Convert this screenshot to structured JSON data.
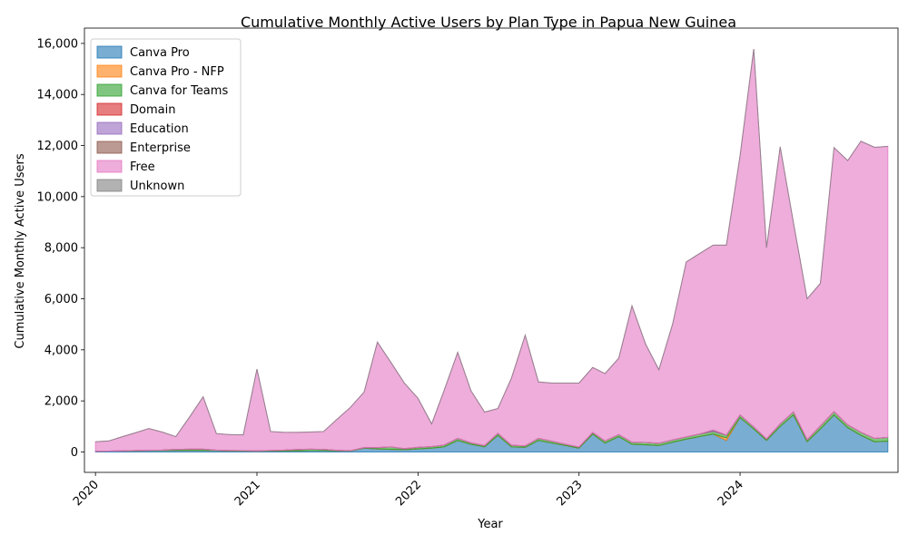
{
  "chart_data": {
    "type": "area",
    "stacked": true,
    "title": "Cumulative Monthly Active Users by Plan Type in Papua New Guinea",
    "xlabel": "Year",
    "ylabel": "Cumulative Monthly Active Users",
    "ylim": [
      -800,
      16600
    ],
    "yticks": [
      0,
      2000,
      4000,
      6000,
      8000,
      10000,
      12000,
      14000,
      16000
    ],
    "ytick_labels": [
      "0",
      "2,000",
      "4,000",
      "6,000",
      "8,000",
      "10,000",
      "12,000",
      "14,000",
      "16,000"
    ],
    "xlim": [
      "2019-12-07",
      "2024-12-24"
    ],
    "xticks": [
      "2020-01-01",
      "2021-01-01",
      "2022-01-01",
      "2023-01-01",
      "2024-01-01"
    ],
    "xtick_labels": [
      "2020",
      "2021",
      "2022",
      "2023",
      "2024"
    ],
    "grid": false,
    "legend_position": "upper-left",
    "x": [
      "2020-01-01",
      "2020-02-01",
      "2020-03-01",
      "2020-04-01",
      "2020-05-01",
      "2020-06-01",
      "2020-07-01",
      "2020-08-01",
      "2020-09-01",
      "2020-10-01",
      "2020-11-01",
      "2020-12-01",
      "2021-01-01",
      "2021-02-01",
      "2021-03-01",
      "2021-04-01",
      "2021-05-01",
      "2021-06-01",
      "2021-07-01",
      "2021-08-01",
      "2021-09-01",
      "2021-10-01",
      "2021-11-01",
      "2021-12-01",
      "2022-01-01",
      "2022-02-01",
      "2022-03-01",
      "2022-04-01",
      "2022-05-01",
      "2022-06-01",
      "2022-07-01",
      "2022-08-01",
      "2022-09-01",
      "2022-10-01",
      "2022-11-01",
      "2022-12-01",
      "2023-01-01",
      "2023-02-01",
      "2023-03-01",
      "2023-04-01",
      "2023-05-01",
      "2023-06-01",
      "2023-07-01",
      "2023-08-01",
      "2023-09-01",
      "2023-10-01",
      "2023-11-01",
      "2023-12-01",
      "2024-01-01",
      "2024-02-01",
      "2024-03-01",
      "2024-04-01",
      "2024-05-01",
      "2024-06-01",
      "2024-07-01",
      "2024-08-01",
      "2024-09-01",
      "2024-10-01",
      "2024-11-01",
      "2024-12-01"
    ],
    "series": [
      {
        "name": "Canva Pro",
        "color": "#1f77b4",
        "values": [
          30,
          35,
          40,
          45,
          50,
          55,
          60,
          65,
          60,
          50,
          40,
          35,
          30,
          35,
          40,
          45,
          50,
          50,
          45,
          40,
          150,
          120,
          100,
          90,
          120,
          150,
          200,
          450,
          300,
          200,
          650,
          200,
          180,
          450,
          350,
          250,
          150,
          700,
          350,
          600,
          300,
          280,
          250,
          380,
          500,
          600,
          700,
          450,
          1350,
          900,
          450,
          1000,
          1450,
          400,
          900,
          1450,
          950,
          650,
          400,
          420
        ]
      },
      {
        "name": "Canva Pro - NFP",
        "color": "#ff7f0e",
        "values": [
          0,
          0,
          0,
          0,
          0,
          0,
          0,
          0,
          0,
          0,
          0,
          0,
          0,
          0,
          0,
          0,
          0,
          0,
          0,
          0,
          0,
          0,
          0,
          0,
          0,
          0,
          0,
          0,
          0,
          0,
          0,
          0,
          0,
          0,
          0,
          0,
          0,
          0,
          0,
          0,
          0,
          0,
          0,
          0,
          0,
          0,
          0,
          100,
          0,
          0,
          0,
          0,
          0,
          0,
          0,
          0,
          0,
          0,
          0,
          0
        ]
      },
      {
        "name": "Canva for Teams",
        "color": "#2ca02c",
        "values": [
          0,
          0,
          5,
          10,
          15,
          20,
          40,
          45,
          50,
          20,
          15,
          15,
          15,
          20,
          30,
          50,
          60,
          50,
          20,
          10,
          20,
          50,
          100,
          40,
          60,
          60,
          70,
          80,
          60,
          50,
          80,
          60,
          60,
          80,
          70,
          50,
          40,
          60,
          80,
          80,
          80,
          90,
          90,
          90,
          90,
          100,
          110,
          110,
          100,
          80,
          60,
          100,
          120,
          80,
          120,
          130,
          110,
          120,
          130,
          150
        ]
      },
      {
        "name": "Domain",
        "color": "#d62728",
        "values": [
          0,
          0,
          0,
          0,
          0,
          0,
          0,
          0,
          0,
          0,
          0,
          0,
          0,
          0,
          0,
          0,
          0,
          0,
          0,
          0,
          0,
          0,
          0,
          0,
          0,
          0,
          0,
          0,
          0,
          0,
          0,
          0,
          0,
          0,
          0,
          0,
          0,
          0,
          0,
          0,
          0,
          0,
          0,
          0,
          0,
          0,
          0,
          0,
          0,
          0,
          0,
          0,
          0,
          0,
          0,
          0,
          0,
          0,
          0,
          0
        ]
      },
      {
        "name": "Education",
        "color": "#9467bd",
        "values": [
          0,
          0,
          0,
          0,
          0,
          0,
          0,
          0,
          0,
          0,
          0,
          0,
          0,
          0,
          0,
          0,
          0,
          0,
          0,
          0,
          0,
          0,
          0,
          0,
          0,
          0,
          0,
          0,
          0,
          0,
          0,
          0,
          0,
          0,
          0,
          0,
          0,
          0,
          0,
          0,
          0,
          0,
          0,
          0,
          0,
          0,
          50,
          0,
          0,
          0,
          0,
          0,
          0,
          0,
          0,
          0,
          0,
          0,
          0,
          0
        ]
      },
      {
        "name": "Enterprise",
        "color": "#8c564b",
        "values": [
          0,
          0,
          0,
          0,
          0,
          0,
          0,
          0,
          0,
          0,
          0,
          0,
          0,
          0,
          0,
          0,
          0,
          0,
          0,
          0,
          0,
          0,
          0,
          0,
          0,
          0,
          0,
          0,
          0,
          0,
          0,
          0,
          0,
          0,
          0,
          0,
          0,
          0,
          0,
          0,
          0,
          0,
          0,
          0,
          0,
          0,
          0,
          0,
          0,
          0,
          0,
          0,
          0,
          0,
          0,
          0,
          0,
          0,
          0,
          0
        ]
      },
      {
        "name": "Free",
        "color": "#e377c2",
        "values": [
          370,
          400,
          550,
          700,
          850,
          700,
          500,
          1250,
          2050,
          650,
          625,
          620,
          3200,
          745,
          700,
          670,
          670,
          700,
          1210,
          1700,
          2180,
          4130,
          3300,
          2570,
          1920,
          890,
          2130,
          3370,
          2040,
          1310,
          970,
          2640,
          4330,
          2210,
          2280,
          2400,
          2510,
          2550,
          2640,
          2990,
          5340,
          3850,
          2880,
          4530,
          6850,
          7070,
          7240,
          7440,
          10150,
          14800,
          7490,
          10850,
          7410,
          5520,
          5580,
          10340,
          10350,
          11400,
          11400,
          11400
        ]
      },
      {
        "name": "Unknown",
        "color": "#7f7f7f",
        "values": [
          0,
          0,
          0,
          0,
          0,
          0,
          0,
          0,
          0,
          0,
          0,
          0,
          0,
          0,
          0,
          0,
          0,
          0,
          0,
          0,
          0,
          0,
          0,
          0,
          0,
          0,
          0,
          0,
          0,
          0,
          0,
          0,
          0,
          0,
          0,
          0,
          0,
          0,
          0,
          0,
          0,
          0,
          0,
          0,
          0,
          0,
          0,
          0,
          0,
          0,
          0,
          0,
          0,
          0,
          0,
          0,
          0,
          0,
          0,
          0
        ]
      }
    ]
  }
}
